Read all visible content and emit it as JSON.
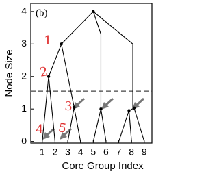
{
  "chart_data": {
    "type": "tree",
    "annotation": "(b)",
    "handwritten_labels": [
      "1",
      "2",
      "3",
      "4",
      "5"
    ],
    "handwritten_color": "#e03030",
    "x_label": "Core Group Index",
    "y_label": "Node Size",
    "xlim": [
      0.1,
      9.6
    ],
    "ylim": [
      -0.05,
      4.25
    ],
    "xticks": [
      1,
      2,
      3,
      4,
      5,
      6,
      7,
      8,
      9
    ],
    "yticks": [
      0,
      1,
      2,
      3,
      4
    ],
    "threshold": 1.55,
    "color": "#000000",
    "nodes": {
      "x": [
        5,
        2.5,
        1.5,
        3.5,
        5.6,
        7.8,
        8.2
      ],
      "y": [
        4,
        3,
        2,
        1.05,
        1,
        0.95,
        1.03
      ]
    },
    "edges": [
      {
        "x": [
          5,
          2.5
        ],
        "y": [
          4,
          3
        ]
      },
      {
        "x": [
          5,
          8.1,
          8.1
        ],
        "y": [
          4,
          3,
          1.03
        ]
      },
      {
        "x": [
          5,
          5.6,
          5.6
        ],
        "y": [
          4,
          3.3,
          1
        ]
      },
      {
        "x": [
          2.5,
          1.5
        ],
        "y": [
          3,
          2
        ]
      },
      {
        "x": [
          2.5,
          3.5
        ],
        "y": [
          3,
          1.05
        ]
      },
      {
        "x": [
          1,
          1.5,
          2
        ],
        "y": [
          0,
          2,
          0
        ]
      },
      {
        "x": [
          3,
          3.5,
          4
        ],
        "y": [
          0,
          1.05,
          0
        ]
      },
      {
        "x": [
          5,
          5.6,
          6
        ],
        "y": [
          0,
          1,
          0
        ]
      },
      {
        "x": [
          7,
          7.8,
          8
        ],
        "y": [
          0,
          0.95,
          0
        ]
      },
      {
        "x": [
          7.8,
          8.2,
          9
        ],
        "y": [
          0.95,
          1.03,
          0
        ]
      }
    ]
  }
}
